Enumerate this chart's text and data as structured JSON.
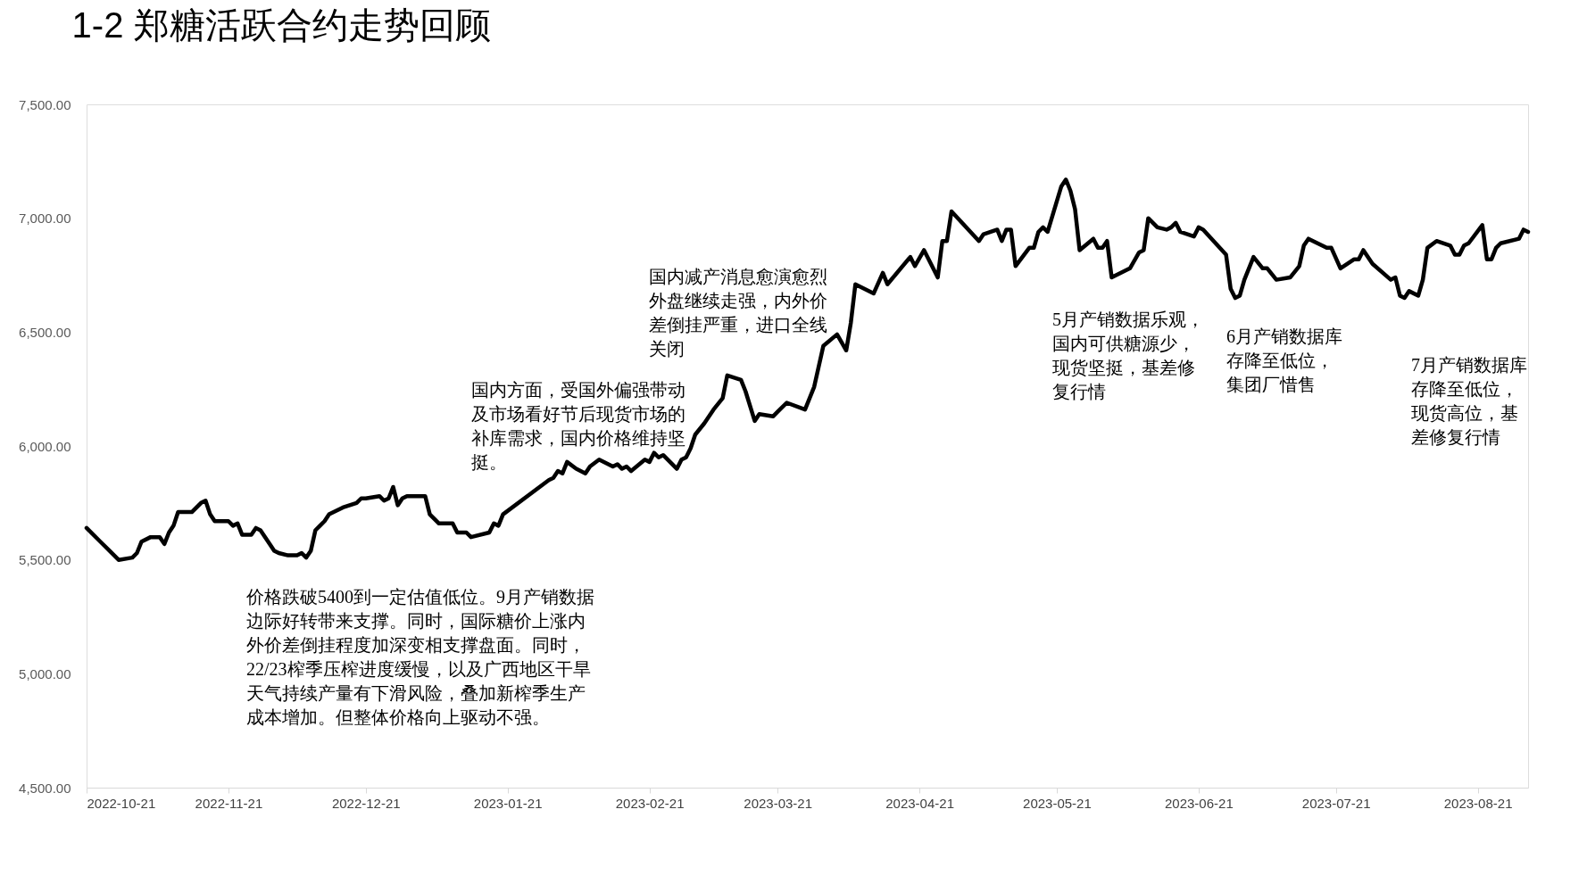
{
  "chart_data": {
    "type": "line",
    "title": "1-2 郑糖活跃合约走势回顾",
    "x": [
      "2022-10-21",
      "2022-10-24",
      "2022-10-26",
      "2022-10-28",
      "2022-10-31",
      "2022-11-01",
      "2022-11-02",
      "2022-11-04",
      "2022-11-06",
      "2022-11-07",
      "2022-11-08",
      "2022-11-09",
      "2022-11-10",
      "2022-11-13",
      "2022-11-15",
      "2022-11-16",
      "2022-11-17",
      "2022-11-18",
      "2022-11-21",
      "2022-11-22",
      "2022-11-23",
      "2022-11-24",
      "2022-11-26",
      "2022-11-27",
      "2022-11-28",
      "2022-11-30",
      "2022-12-01",
      "2022-12-02",
      "2022-12-04",
      "2022-12-06",
      "2022-12-07",
      "2022-12-08",
      "2022-12-09",
      "2022-12-10",
      "2022-12-11",
      "2022-12-12",
      "2022-12-13",
      "2022-12-16",
      "2022-12-19",
      "2022-12-20",
      "2022-12-21",
      "2022-12-24",
      "2022-12-25",
      "2022-12-26",
      "2022-12-27",
      "2022-12-28",
      "2022-12-29",
      "2022-12-30",
      "2023-01-03",
      "2023-01-04",
      "2023-01-06",
      "2023-01-09",
      "2023-01-10",
      "2023-01-12",
      "2023-01-13",
      "2023-01-17",
      "2023-01-18",
      "2023-01-19",
      "2023-01-20",
      "2023-01-30",
      "2023-01-31",
      "2023-02-01",
      "2023-02-02",
      "2023-02-03",
      "2023-02-05",
      "2023-02-07",
      "2023-02-08",
      "2023-02-10",
      "2023-02-13",
      "2023-02-14",
      "2023-02-15",
      "2023-02-16",
      "2023-02-17",
      "2023-02-20",
      "2023-02-21",
      "2023-02-22",
      "2023-02-23",
      "2023-02-24",
      "2023-02-27",
      "2023-02-28",
      "2023-03-01",
      "2023-03-02",
      "2023-03-03",
      "2023-03-05",
      "2023-03-07",
      "2023-03-09",
      "2023-03-10",
      "2023-03-13",
      "2023-03-14",
      "2023-03-16",
      "2023-03-17",
      "2023-03-20",
      "2023-03-21",
      "2023-03-23",
      "2023-03-27",
      "2023-03-29",
      "2023-03-31",
      "2023-04-03",
      "2023-04-05",
      "2023-04-06",
      "2023-04-07",
      "2023-04-11",
      "2023-04-13",
      "2023-04-14",
      "2023-04-19",
      "2023-04-20",
      "2023-04-22",
      "2023-04-25",
      "2023-04-26",
      "2023-04-27",
      "2023-04-28",
      "2023-05-04",
      "2023-05-05",
      "2023-05-08",
      "2023-05-09",
      "2023-05-10",
      "2023-05-11",
      "2023-05-12",
      "2023-05-15",
      "2023-05-16",
      "2023-05-17",
      "2023-05-18",
      "2023-05-19",
      "2023-05-22",
      "2023-05-23",
      "2023-05-24",
      "2023-05-25",
      "2023-05-26",
      "2023-05-29",
      "2023-05-30",
      "2023-05-31",
      "2023-06-01",
      "2023-06-02",
      "2023-06-06",
      "2023-06-08",
      "2023-06-09",
      "2023-06-10",
      "2023-06-12",
      "2023-06-14",
      "2023-06-15",
      "2023-06-16",
      "2023-06-17",
      "2023-06-20",
      "2023-06-21",
      "2023-06-22",
      "2023-06-27",
      "2023-06-28",
      "2023-06-29",
      "2023-06-30",
      "2023-07-01",
      "2023-07-03",
      "2023-07-05",
      "2023-07-06",
      "2023-07-08",
      "2023-07-11",
      "2023-07-13",
      "2023-07-14",
      "2023-07-15",
      "2023-07-19",
      "2023-07-20",
      "2023-07-22",
      "2023-07-25",
      "2023-07-26",
      "2023-07-27",
      "2023-07-29",
      "2023-08-02",
      "2023-08-03",
      "2023-08-04",
      "2023-08-05",
      "2023-08-06",
      "2023-08-08",
      "2023-08-09",
      "2023-08-10",
      "2023-08-12",
      "2023-08-15",
      "2023-08-16",
      "2023-08-17",
      "2023-08-18",
      "2023-08-19",
      "2023-08-22",
      "2023-08-23",
      "2023-08-24",
      "2023-08-25",
      "2023-08-26",
      "2023-08-30",
      "2023-08-31",
      "2023-09-01"
    ],
    "series": [
      {
        "color": "#000000",
        "values": [
          5640,
          5580,
          5540,
          5500,
          5510,
          5530,
          5580,
          5600,
          5600,
          5570,
          5620,
          5650,
          5710,
          5710,
          5750,
          5760,
          5700,
          5670,
          5670,
          5650,
          5660,
          5610,
          5610,
          5640,
          5630,
          5570,
          5540,
          5530,
          5520,
          5520,
          5530,
          5510,
          5540,
          5630,
          5650,
          5670,
          5700,
          5730,
          5750,
          5770,
          5770,
          5780,
          5760,
          5770,
          5820,
          5740,
          5770,
          5780,
          5780,
          5700,
          5660,
          5660,
          5620,
          5620,
          5600,
          5620,
          5660,
          5650,
          5700,
          5850,
          5860,
          5890,
          5880,
          5930,
          5900,
          5880,
          5910,
          5940,
          5910,
          5920,
          5900,
          5910,
          5890,
          5940,
          5930,
          5970,
          5950,
          5960,
          5900,
          5940,
          5950,
          5990,
          6050,
          6100,
          6160,
          6210,
          6310,
          6290,
          6240,
          6110,
          6140,
          6130,
          6150,
          6190,
          6160,
          6260,
          6440,
          6490,
          6420,
          6540,
          6710,
          6670,
          6760,
          6710,
          6830,
          6790,
          6860,
          6740,
          6900,
          6900,
          7030,
          6900,
          6930,
          6950,
          6900,
          6950,
          6950,
          6790,
          6870,
          6870,
          6940,
          6960,
          6940,
          7140,
          7170,
          7120,
          7040,
          6860,
          6910,
          6870,
          6870,
          6900,
          6740,
          6780,
          6850,
          6860,
          7000,
          6960,
          6950,
          6960,
          6980,
          6940,
          6920,
          6960,
          6950,
          6840,
          6690,
          6650,
          6660,
          6730,
          6830,
          6780,
          6780,
          6730,
          6740,
          6790,
          6880,
          6910,
          6870,
          6870,
          6780,
          6820,
          6820,
          6860,
          6800,
          6730,
          6740,
          6660,
          6650,
          6680,
          6660,
          6730,
          6870,
          6900,
          6880,
          6840,
          6840,
          6880,
          6890,
          6970,
          6820,
          6820,
          6870,
          6890,
          6910,
          6950,
          6940
        ]
      }
    ],
    "xlim": [
      "2022-10-21",
      "2023-09-01"
    ],
    "xticks": [
      "2022-10-21",
      "2022-11-21",
      "2022-12-21",
      "2023-01-21",
      "2023-02-21",
      "2023-03-21",
      "2023-04-21",
      "2023-05-21",
      "2023-06-21",
      "2023-07-21",
      "2023-08-21"
    ],
    "ylim": [
      4500,
      7500
    ],
    "yticks": [
      {
        "value": 4500,
        "label": "4,500.00"
      },
      {
        "value": 5000,
        "label": "5,000.00"
      },
      {
        "value": 5500,
        "label": "5,500.00"
      },
      {
        "value": 6000,
        "label": "6,000.00"
      },
      {
        "value": 6500,
        "label": "6,500.00"
      },
      {
        "value": 7000,
        "label": "7,000.00"
      },
      {
        "value": 7500,
        "label": "7,500.00"
      }
    ],
    "grid": false,
    "marker": "none",
    "line_style": "solid",
    "annotations": [
      "价格跌破5400到一定估值低位。9月产销数据边际好转带来支撑。同时，国际糖价上涨内外价差倒挂程度加深变相支撑盘面。同时，22/23榨季压榨进度缓慢，以及广西地区干旱天气持续产量有下滑风险，叠加新榨季生产成本增加。但整体价格向上驱动不强。",
      "国内方面，受国外偏强带动及市场看好节后现货市场的补库需求，国内价格维持坚挺。",
      "国内减产消息愈演愈烈外盘继续走强，内外价差倒挂严重，进口全线关闭",
      "5月产销数据乐观，国内可供糖源少，现货坚挺，基差修复行情",
      "6月产销数据库存降至低位，集团厂惜售",
      "7月产销数据库存降至低位，现货高位，基差修复行情"
    ]
  }
}
